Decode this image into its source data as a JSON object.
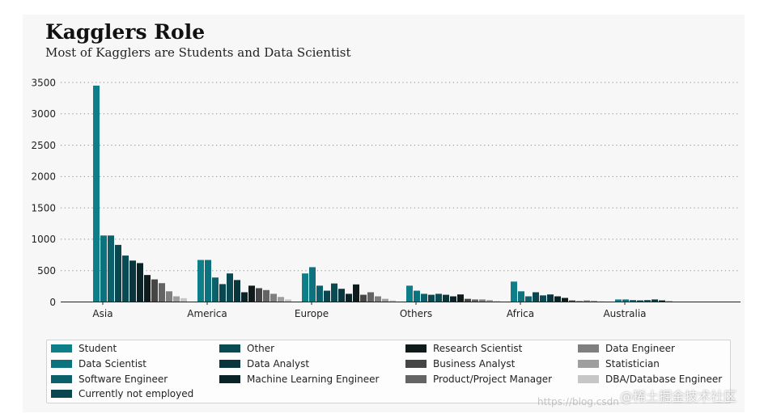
{
  "chart_data": {
    "type": "bar",
    "title": "Kagglers Role",
    "subtitle": "Most of Kagglers are Students and Data Scientist",
    "xlabel": "",
    "ylabel": "",
    "categories": [
      "Asia",
      "America",
      "Europe",
      "Others",
      "Africa",
      "Australia"
    ],
    "ylim": [
      0,
      3500
    ],
    "yticks": [
      0,
      500,
      1000,
      1500,
      2000,
      2500,
      3000,
      3500
    ],
    "grid": "horizontal dotted",
    "legend_position": "bottom",
    "legend_columns": 4,
    "series": [
      {
        "name": "Student",
        "color": "#0e7e88",
        "values": [
          3450,
          670,
          455,
          260,
          325,
          40
        ]
      },
      {
        "name": "Data Scientist",
        "color": "#0c737e",
        "values": [
          1060,
          670,
          555,
          180,
          170,
          40
        ]
      },
      {
        "name": "Software Engineer",
        "color": "#0b606a",
        "values": [
          1060,
          390,
          260,
          130,
          90,
          30
        ]
      },
      {
        "name": "Currently not employed",
        "color": "#0a4650",
        "values": [
          910,
          285,
          180,
          115,
          155,
          25
        ]
      },
      {
        "name": "Other",
        "color": "#0a4a52",
        "values": [
          740,
          455,
          295,
          130,
          105,
          30
        ]
      },
      {
        "name": "Data Analyst",
        "color": "#08363c",
        "values": [
          660,
          350,
          210,
          115,
          120,
          40
        ]
      },
      {
        "name": "Machine Learning Engineer",
        "color": "#0a2326",
        "values": [
          620,
          155,
          130,
          90,
          90,
          25
        ]
      },
      {
        "name": "Research Scientist",
        "color": "#0f1b1b",
        "values": [
          430,
          260,
          280,
          120,
          65,
          10
        ]
      },
      {
        "name": "Business Analyst",
        "color": "#454545",
        "values": [
          360,
          220,
          115,
          50,
          25,
          5
        ]
      },
      {
        "name": "Product/Project Manager",
        "color": "#646464",
        "values": [
          300,
          190,
          155,
          40,
          15,
          5
        ]
      },
      {
        "name": "Data Engineer",
        "color": "#7f7f7f",
        "values": [
          170,
          130,
          90,
          40,
          25,
          5
        ]
      },
      {
        "name": "Statistician",
        "color": "#9e9e9e",
        "values": [
          90,
          80,
          50,
          30,
          20,
          5
        ]
      },
      {
        "name": "DBA/Database Engineer",
        "color": "#c6c6c6",
        "values": [
          60,
          40,
          25,
          15,
          10,
          3
        ]
      }
    ]
  },
  "colors": {
    "panel_background": "#f7f7f7",
    "axis": "#222222",
    "grid": "#8a8a8a"
  },
  "watermark": {
    "url": "https://blog.csdn",
    "site": "@稀土掘金技术社区"
  }
}
